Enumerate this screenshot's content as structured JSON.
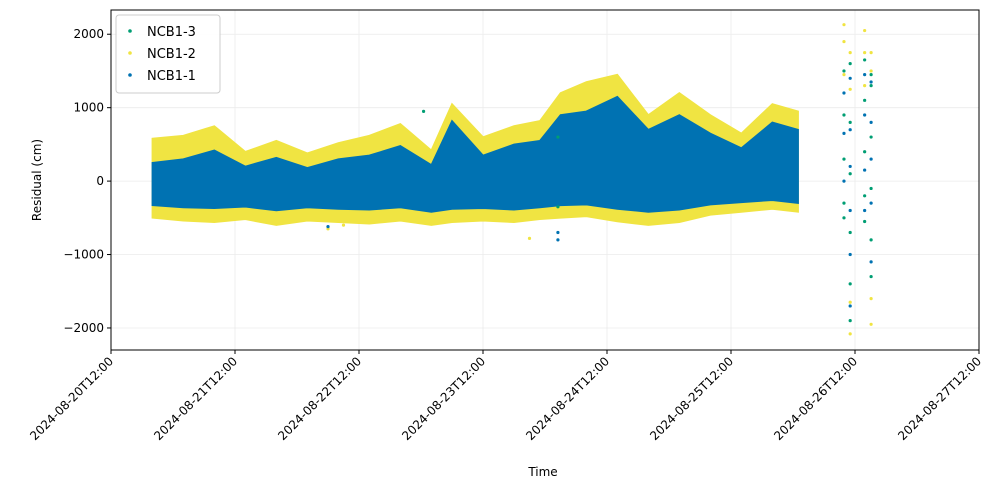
{
  "chart_data": {
    "type": "scatter",
    "title": "",
    "xlabel": "Time",
    "ylabel": "Residual (cm)",
    "x_type": "datetime",
    "xlim": [
      "2024-08-20T12:00",
      "2024-08-27T12:00"
    ],
    "ylim": [
      -2300,
      2330
    ],
    "x_ticks": [
      "2024-08-20T12:00",
      "2024-08-21T12:00",
      "2024-08-22T12:00",
      "2024-08-23T12:00",
      "2024-08-24T12:00",
      "2024-08-25T12:00",
      "2024-08-26T12:00",
      "2024-08-27T12:00"
    ],
    "y_ticks": [
      -2000,
      -1000,
      0,
      1000,
      2000
    ],
    "grid": true,
    "legend_position": "top-left",
    "series": [
      {
        "name": "NCB1-3",
        "color": "#009e73",
        "points": [
          [
            "2024-08-26T09:52",
            1500
          ],
          [
            "2024-08-26T09:52",
            900
          ],
          [
            "2024-08-26T09:52",
            300
          ],
          [
            "2024-08-26T09:52",
            -300
          ],
          [
            "2024-08-26T09:52",
            -500
          ],
          [
            "2024-08-26T11:04",
            1600
          ],
          [
            "2024-08-26T11:04",
            800
          ],
          [
            "2024-08-26T11:04",
            100
          ],
          [
            "2024-08-26T11:04",
            -700
          ],
          [
            "2024-08-26T11:04",
            -1400
          ],
          [
            "2024-08-26T11:04",
            -1900
          ],
          [
            "2024-08-26T13:52",
            1650
          ],
          [
            "2024-08-26T13:52",
            1100
          ],
          [
            "2024-08-26T13:52",
            400
          ],
          [
            "2024-08-26T13:52",
            -200
          ],
          [
            "2024-08-26T13:52",
            -550
          ],
          [
            "2024-08-26T15:07",
            1450
          ],
          [
            "2024-08-26T15:07",
            1300
          ],
          [
            "2024-08-26T15:07",
            600
          ],
          [
            "2024-08-26T15:07",
            -100
          ],
          [
            "2024-08-26T15:07",
            -800
          ],
          [
            "2024-08-26T15:07",
            -1300
          ],
          [
            "2024-08-24T02:30",
            600
          ],
          [
            "2024-08-24T02:30",
            -350
          ],
          [
            "2024-08-23T00:30",
            950
          ]
        ]
      },
      {
        "name": "NCB1-2",
        "color": "#f0e442",
        "upper_envelope": [
          [
            "2024-08-20T20:00",
            580
          ],
          [
            "2024-08-21T02:00",
            620
          ],
          [
            "2024-08-21T08:00",
            750
          ],
          [
            "2024-08-21T14:00",
            400
          ],
          [
            "2024-08-21T20:00",
            550
          ],
          [
            "2024-08-22T02:00",
            380
          ],
          [
            "2024-08-22T08:00",
            520
          ],
          [
            "2024-08-22T14:00",
            620
          ],
          [
            "2024-08-22T20:00",
            780
          ],
          [
            "2024-08-23T02:00",
            420
          ],
          [
            "2024-08-23T06:00",
            1050
          ],
          [
            "2024-08-23T12:00",
            600
          ],
          [
            "2024-08-23T18:00",
            750
          ],
          [
            "2024-08-23T23:00",
            820
          ],
          [
            "2024-08-24T03:00",
            1200
          ],
          [
            "2024-08-24T08:00",
            1350
          ],
          [
            "2024-08-24T14:00",
            1450
          ],
          [
            "2024-08-24T20:00",
            900
          ],
          [
            "2024-08-25T02:00",
            1200
          ],
          [
            "2024-08-25T08:00",
            900
          ],
          [
            "2024-08-25T14:00",
            650
          ],
          [
            "2024-08-25T20:00",
            1050
          ],
          [
            "2024-08-26T01:00",
            950
          ]
        ],
        "lower_envelope": [
          [
            "2024-08-20T20:00",
            -500
          ],
          [
            "2024-08-21T02:00",
            -540
          ],
          [
            "2024-08-21T08:00",
            -560
          ],
          [
            "2024-08-21T14:00",
            -520
          ],
          [
            "2024-08-21T20:00",
            -600
          ],
          [
            "2024-08-22T02:00",
            -540
          ],
          [
            "2024-08-22T08:00",
            -560
          ],
          [
            "2024-08-22T14:00",
            -580
          ],
          [
            "2024-08-22T20:00",
            -540
          ],
          [
            "2024-08-23T02:00",
            -600
          ],
          [
            "2024-08-23T06:00",
            -560
          ],
          [
            "2024-08-23T12:00",
            -540
          ],
          [
            "2024-08-23T18:00",
            -560
          ],
          [
            "2024-08-23T23:00",
            -520
          ],
          [
            "2024-08-24T03:00",
            -500
          ],
          [
            "2024-08-24T08:00",
            -480
          ],
          [
            "2024-08-24T14:00",
            -550
          ],
          [
            "2024-08-24T20:00",
            -600
          ],
          [
            "2024-08-25T02:00",
            -560
          ],
          [
            "2024-08-25T08:00",
            -460
          ],
          [
            "2024-08-25T14:00",
            -420
          ],
          [
            "2024-08-25T20:00",
            -380
          ],
          [
            "2024-08-26T01:00",
            -420
          ]
        ],
        "points": [
          [
            "2024-08-26T09:52",
            2130
          ],
          [
            "2024-08-26T09:52",
            1900
          ],
          [
            "2024-08-26T09:52",
            1450
          ],
          [
            "2024-08-26T11:04",
            1750
          ],
          [
            "2024-08-26T11:04",
            1250
          ],
          [
            "2024-08-26T11:04",
            -1650
          ],
          [
            "2024-08-26T11:04",
            -2080
          ],
          [
            "2024-08-26T13:52",
            2050
          ],
          [
            "2024-08-26T13:52",
            1750
          ],
          [
            "2024-08-26T13:52",
            1300
          ],
          [
            "2024-08-26T15:07",
            1750
          ],
          [
            "2024-08-26T15:07",
            1500
          ],
          [
            "2024-08-26T15:07",
            -1600
          ],
          [
            "2024-08-26T15:07",
            -1950
          ],
          [
            "2024-08-23T21:00",
            -780
          ],
          [
            "2024-08-22T06:00",
            -650
          ],
          [
            "2024-08-22T09:00",
            -600
          ]
        ]
      },
      {
        "name": "NCB1-1",
        "color": "#0072b2",
        "upper_envelope": [
          [
            "2024-08-20T20:00",
            250
          ],
          [
            "2024-08-21T02:00",
            300
          ],
          [
            "2024-08-21T08:00",
            420
          ],
          [
            "2024-08-21T14:00",
            200
          ],
          [
            "2024-08-21T20:00",
            320
          ],
          [
            "2024-08-22T02:00",
            180
          ],
          [
            "2024-08-22T08:00",
            300
          ],
          [
            "2024-08-22T14:00",
            350
          ],
          [
            "2024-08-22T20:00",
            480
          ],
          [
            "2024-08-23T02:00",
            220
          ],
          [
            "2024-08-23T06:00",
            820
          ],
          [
            "2024-08-23T12:00",
            350
          ],
          [
            "2024-08-23T18:00",
            500
          ],
          [
            "2024-08-23T23:00",
            550
          ],
          [
            "2024-08-24T03:00",
            900
          ],
          [
            "2024-08-24T08:00",
            950
          ],
          [
            "2024-08-24T14:00",
            1150
          ],
          [
            "2024-08-24T20:00",
            700
          ],
          [
            "2024-08-25T02:00",
            900
          ],
          [
            "2024-08-25T08:00",
            650
          ],
          [
            "2024-08-25T14:00",
            450
          ],
          [
            "2024-08-25T20:00",
            800
          ],
          [
            "2024-08-26T01:00",
            700
          ]
        ],
        "lower_envelope": [
          [
            "2024-08-20T20:00",
            -330
          ],
          [
            "2024-08-21T02:00",
            -360
          ],
          [
            "2024-08-21T08:00",
            -370
          ],
          [
            "2024-08-21T14:00",
            -350
          ],
          [
            "2024-08-21T20:00",
            -400
          ],
          [
            "2024-08-22T02:00",
            -360
          ],
          [
            "2024-08-22T08:00",
            -380
          ],
          [
            "2024-08-22T14:00",
            -390
          ],
          [
            "2024-08-22T20:00",
            -360
          ],
          [
            "2024-08-23T02:00",
            -420
          ],
          [
            "2024-08-23T06:00",
            -380
          ],
          [
            "2024-08-23T12:00",
            -370
          ],
          [
            "2024-08-23T18:00",
            -390
          ],
          [
            "2024-08-23T23:00",
            -360
          ],
          [
            "2024-08-24T03:00",
            -330
          ],
          [
            "2024-08-24T08:00",
            -320
          ],
          [
            "2024-08-24T14:00",
            -380
          ],
          [
            "2024-08-24T20:00",
            -420
          ],
          [
            "2024-08-25T02:00",
            -390
          ],
          [
            "2024-08-25T08:00",
            -320
          ],
          [
            "2024-08-25T14:00",
            -290
          ],
          [
            "2024-08-25T20:00",
            -260
          ],
          [
            "2024-08-26T01:00",
            -300
          ]
        ],
        "points": [
          [
            "2024-08-26T09:52",
            1200
          ],
          [
            "2024-08-26T09:52",
            650
          ],
          [
            "2024-08-26T09:52",
            0
          ],
          [
            "2024-08-26T11:04",
            1400
          ],
          [
            "2024-08-26T11:04",
            700
          ],
          [
            "2024-08-26T11:04",
            200
          ],
          [
            "2024-08-26T11:04",
            -400
          ],
          [
            "2024-08-26T11:04",
            -1000
          ],
          [
            "2024-08-26T11:04",
            -1700
          ],
          [
            "2024-08-26T13:52",
            1450
          ],
          [
            "2024-08-26T13:52",
            900
          ],
          [
            "2024-08-26T13:52",
            150
          ],
          [
            "2024-08-26T13:52",
            -400
          ],
          [
            "2024-08-26T15:07",
            1350
          ],
          [
            "2024-08-26T15:07",
            800
          ],
          [
            "2024-08-26T15:07",
            300
          ],
          [
            "2024-08-26T15:07",
            -300
          ],
          [
            "2024-08-26T15:07",
            -1100
          ],
          [
            "2024-08-24T02:30",
            -700
          ],
          [
            "2024-08-24T02:30",
            -800
          ],
          [
            "2024-08-22T06:00",
            -620
          ]
        ]
      }
    ]
  }
}
